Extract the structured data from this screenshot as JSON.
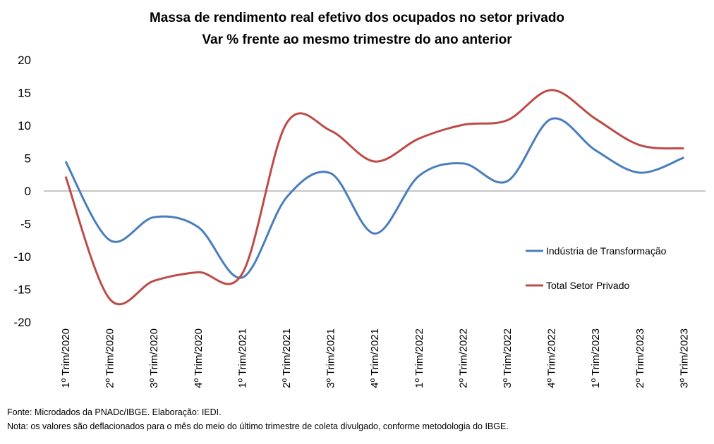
{
  "chart_data": {
    "type": "line",
    "title": "Massa de rendimento real efetivo dos ocupados no setor privado",
    "subtitle": "Var % frente ao mesmo trimestre do ano anterior",
    "xlabel": "",
    "ylabel": "",
    "ylim": [
      -20,
      20
    ],
    "yticks": [
      20,
      15,
      10,
      5,
      0,
      -5,
      -10,
      -15,
      -20
    ],
    "grid": false,
    "legend_position": "right",
    "categories": [
      "1º Trim/2020",
      "2º Trim/2020",
      "3º Trim/2020",
      "4º Trim/2020",
      "1º Trim/2021",
      "2º Trim/2021",
      "3º Trim/2021",
      "4º Trim/2021",
      "1º Trim/2022",
      "2º Trim/2022",
      "3º Trim/2022",
      "4º Trim/2022",
      "1º Trim/2023",
      "2º Trim/2023",
      "3º Trim/2023"
    ],
    "series": [
      {
        "name": "Indústria de Transformação",
        "color": "#4a7ebb",
        "values": [
          4.5,
          -7.5,
          -4.0,
          -5.5,
          -13.2,
          -1.0,
          2.7,
          -6.5,
          2.3,
          4.2,
          1.5,
          11.0,
          6.2,
          2.8,
          5.1
        ]
      },
      {
        "name": "Total Setor Privado",
        "color": "#be4b48",
        "values": [
          2.2,
          -16.5,
          -13.7,
          -12.4,
          -12.6,
          10.3,
          9.2,
          4.5,
          8.0,
          10.1,
          10.8,
          15.4,
          11.0,
          7.0,
          6.5
        ]
      }
    ]
  },
  "footer": {
    "source": "Fonte: Microdados da PNADc/IBGE. Elaboração: IEDI.",
    "note": "Nota: os valores são deflacionados para o mês do meio do último trimestre de coleta divulgado, conforme metodologia do IBGE."
  }
}
